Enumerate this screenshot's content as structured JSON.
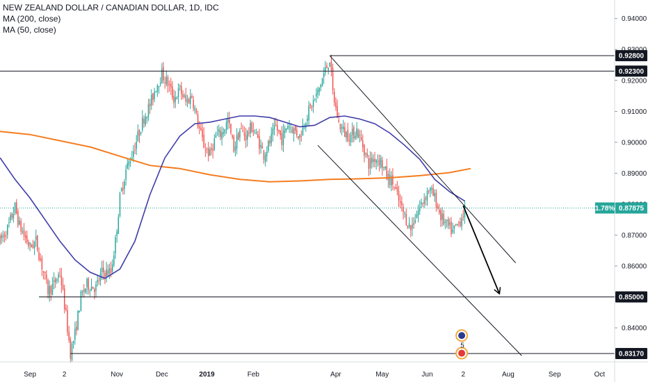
{
  "legend": {
    "title": "NEW ZEALAND DOLLAR / CANADIAN DOLLAR, 1D, IDC",
    "ma200": "MA (200, close)",
    "ma50": "MA (50, close)"
  },
  "colors": {
    "up": "#26a69a",
    "down": "#ef5350",
    "ma200": "#f57c1f",
    "ma50": "#3f3ca8",
    "current": "#26a69a",
    "level": "#131722"
  },
  "chart_data": {
    "type": "candlestick",
    "title": "NEW ZEALAND DOLLAR / CANADIAN DOLLAR, 1D, IDC",
    "ylim": [
      0.829,
      0.946
    ],
    "y_ticks": [
      "0.84000",
      "0.85000",
      "0.86000",
      "0.87000",
      "0.88000",
      "0.89000",
      "0.90000",
      "0.91000",
      "0.92000",
      "0.93000",
      "0.94000"
    ],
    "x_ticks": [
      "Sep",
      "2",
      "Nov",
      "Dec",
      "2019",
      "Feb",
      "Apr",
      "May",
      "Jun",
      "2",
      "Aug",
      "Sep",
      "Oct"
    ],
    "x_tick_days": [
      0,
      23,
      58,
      88,
      118,
      149,
      204,
      235,
      265,
      289,
      319,
      350,
      380
    ],
    "x_range_days": [
      -20,
      390
    ],
    "price_series": [
      [
        -20,
        0.868
      ],
      [
        -15,
        0.872
      ],
      [
        -10,
        0.879
      ],
      [
        -7,
        0.873
      ],
      [
        -3,
        0.869
      ],
      [
        0,
        0.866
      ],
      [
        4,
        0.868
      ],
      [
        8,
        0.86
      ],
      [
        12,
        0.852
      ],
      [
        16,
        0.854
      ],
      [
        20,
        0.858
      ],
      [
        24,
        0.844
      ],
      [
        27,
        0.832
      ],
      [
        30,
        0.838
      ],
      [
        34,
        0.85
      ],
      [
        38,
        0.854
      ],
      [
        44,
        0.853
      ],
      [
        48,
        0.858
      ],
      [
        54,
        0.858
      ],
      [
        57,
        0.868
      ],
      [
        60,
        0.882
      ],
      [
        64,
        0.891
      ],
      [
        68,
        0.896
      ],
      [
        72,
        0.902
      ],
      [
        76,
        0.908
      ],
      [
        80,
        0.912
      ],
      [
        84,
        0.918
      ],
      [
        88,
        0.922
      ],
      [
        92,
        0.919
      ],
      [
        96,
        0.914
      ],
      [
        100,
        0.917
      ],
      [
        104,
        0.913
      ],
      [
        108,
        0.915
      ],
      [
        112,
        0.906
      ],
      [
        116,
        0.899
      ],
      [
        120,
        0.896
      ],
      [
        124,
        0.902
      ],
      [
        128,
        0.903
      ],
      [
        132,
        0.907
      ],
      [
        136,
        0.898
      ],
      [
        140,
        0.904
      ],
      [
        144,
        0.902
      ],
      [
        148,
        0.905
      ],
      [
        152,
        0.901
      ],
      [
        156,
        0.896
      ],
      [
        160,
        0.9
      ],
      [
        164,
        0.905
      ],
      [
        168,
        0.901
      ],
      [
        172,
        0.906
      ],
      [
        176,
        0.904
      ],
      [
        180,
        0.902
      ],
      [
        184,
        0.908
      ],
      [
        188,
        0.912
      ],
      [
        192,
        0.916
      ],
      [
        196,
        0.922
      ],
      [
        200,
        0.927
      ],
      [
        202,
        0.916
      ],
      [
        206,
        0.906
      ],
      [
        210,
        0.903
      ],
      [
        214,
        0.902
      ],
      [
        218,
        0.904
      ],
      [
        222,
        0.899
      ],
      [
        226,
        0.893
      ],
      [
        230,
        0.895
      ],
      [
        234,
        0.894
      ],
      [
        238,
        0.889
      ],
      [
        242,
        0.887
      ],
      [
        246,
        0.881
      ],
      [
        250,
        0.876
      ],
      [
        254,
        0.872
      ],
      [
        258,
        0.877
      ],
      [
        262,
        0.881
      ],
      [
        266,
        0.885
      ],
      [
        270,
        0.882
      ],
      [
        274,
        0.876
      ],
      [
        278,
        0.873
      ],
      [
        282,
        0.871
      ],
      [
        286,
        0.874
      ],
      [
        290,
        0.878
      ]
    ],
    "ma200": [
      [
        -20,
        0.9035
      ],
      [
        0,
        0.9025
      ],
      [
        20,
        0.9005
      ],
      [
        40,
        0.8985
      ],
      [
        60,
        0.8955
      ],
      [
        80,
        0.8925
      ],
      [
        100,
        0.8915
      ],
      [
        120,
        0.8895
      ],
      [
        140,
        0.888
      ],
      [
        160,
        0.8872
      ],
      [
        180,
        0.8875
      ],
      [
        200,
        0.888
      ],
      [
        220,
        0.8882
      ],
      [
        240,
        0.8885
      ],
      [
        260,
        0.8892
      ],
      [
        280,
        0.8902
      ],
      [
        294,
        0.8915
      ]
    ],
    "ma50": [
      [
        -20,
        0.895
      ],
      [
        -10,
        0.888
      ],
      [
        0,
        0.882
      ],
      [
        10,
        0.875
      ],
      [
        20,
        0.868
      ],
      [
        30,
        0.862
      ],
      [
        40,
        0.858
      ],
      [
        50,
        0.856
      ],
      [
        60,
        0.859
      ],
      [
        70,
        0.868
      ],
      [
        80,
        0.883
      ],
      [
        90,
        0.895
      ],
      [
        100,
        0.902
      ],
      [
        110,
        0.906
      ],
      [
        120,
        0.9065
      ],
      [
        130,
        0.9075
      ],
      [
        140,
        0.9085
      ],
      [
        150,
        0.9085
      ],
      [
        160,
        0.908
      ],
      [
        170,
        0.9065
      ],
      [
        180,
        0.905
      ],
      [
        190,
        0.9055
      ],
      [
        200,
        0.908
      ],
      [
        210,
        0.9085
      ],
      [
        220,
        0.9075
      ],
      [
        230,
        0.906
      ],
      [
        240,
        0.903
      ],
      [
        250,
        0.899
      ],
      [
        260,
        0.8945
      ],
      [
        270,
        0.888
      ],
      [
        280,
        0.884
      ],
      [
        290,
        0.881
      ]
    ],
    "horizontal_levels": [
      {
        "label": "0.92800",
        "value": 0.928,
        "from_day": 200
      },
      {
        "label": "0.92300",
        "value": 0.923,
        "from_day": -20
      },
      {
        "label": "0.85000",
        "value": 0.85,
        "from_day": 6
      },
      {
        "label": "0.83170",
        "value": 0.8317,
        "from_day": 27
      }
    ],
    "channel_lines": [
      {
        "from": [
          200,
          0.928
        ],
        "to": [
          324,
          0.861
        ]
      },
      {
        "from": [
          192,
          0.899
        ],
        "to": [
          328,
          0.831
        ]
      }
    ],
    "projection_arrow": {
      "from": [
        289,
        0.8795
      ],
      "to": [
        313,
        0.8512
      ]
    },
    "current": {
      "value": 0.87875,
      "label": "0.87875",
      "change": "1.78%"
    },
    "events": [
      {
        "day": 288,
        "value": 0.8375
      },
      {
        "day": 288,
        "value": 0.8318,
        "count": "5"
      }
    ]
  }
}
